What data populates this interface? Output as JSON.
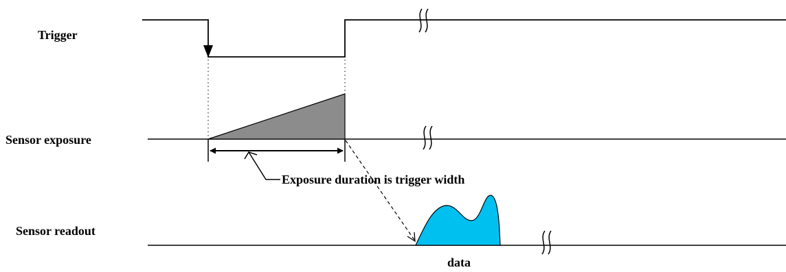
{
  "signals": {
    "trigger": "Trigger",
    "exposure": "Sensor exposure",
    "readout": "Sensor readout"
  },
  "annotations": {
    "exposure_duration": "Exposure duration is trigger width",
    "data": "data"
  },
  "colors": {
    "line": "#000000",
    "exposure_fill": "#8c8c8c",
    "data_fill": "#00c0f0"
  }
}
